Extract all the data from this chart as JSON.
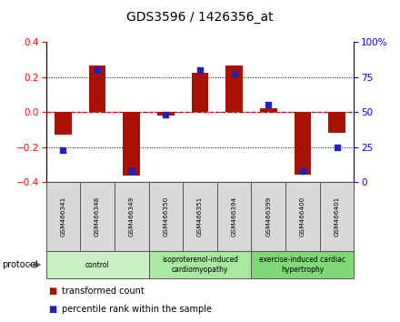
{
  "title": "GDS3596 / 1426356_at",
  "samples": [
    "GSM466341",
    "GSM466348",
    "GSM466349",
    "GSM466350",
    "GSM466351",
    "GSM466394",
    "GSM466399",
    "GSM466400",
    "GSM466401"
  ],
  "transformed_counts": [
    -0.13,
    0.265,
    -0.365,
    -0.02,
    0.225,
    0.265,
    0.02,
    -0.36,
    -0.12
  ],
  "percentile_ranks": [
    23,
    80,
    8,
    48,
    80,
    77,
    55,
    8,
    25
  ],
  "groups": [
    {
      "label": "control",
      "start": 0,
      "end": 3,
      "color": "#c8f0c0"
    },
    {
      "label": "isoproterenol-induced\ncardiomyopathy",
      "start": 3,
      "end": 6,
      "color": "#a8e8a0"
    },
    {
      "label": "exercise-induced cardiac\nhypertrophy",
      "start": 6,
      "end": 9,
      "color": "#80d878"
    }
  ],
  "bar_color_red": "#aa1100",
  "bar_color_blue": "#2222bb",
  "ylim_left": [
    -0.4,
    0.4
  ],
  "ylim_right": [
    0,
    100
  ],
  "yticks_left": [
    -0.4,
    -0.2,
    0.0,
    0.2,
    0.4
  ],
  "yticks_right": [
    0,
    25,
    50,
    75,
    100
  ],
  "ytick_labels_right": [
    "0",
    "25",
    "50",
    "75",
    "100%"
  ],
  "background_color": "#ffffff",
  "plot_bg_color": "#ffffff",
  "zero_line_color": "#cc0000",
  "bar_width": 0.5,
  "sample_box_color": "#d8d8d8",
  "protocol_arrow_color": "#888888"
}
